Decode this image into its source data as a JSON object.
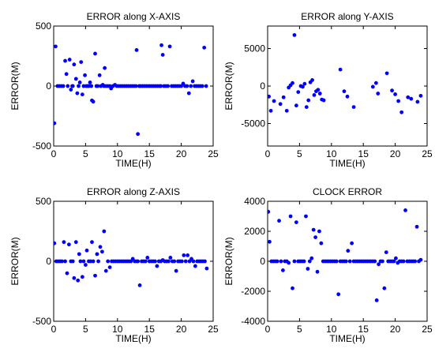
{
  "chart_data": [
    {
      "type": "scatter",
      "title": "ERROR along X-AXIS",
      "xlabel": "TIME(H)",
      "ylabel": "ERROR(M)",
      "xlim": [
        0,
        25
      ],
      "ylim": [
        -500,
        500
      ],
      "xticks": [
        0,
        5,
        10,
        15,
        20,
        25
      ],
      "yticks": [
        -500,
        0,
        500
      ],
      "marker_color": "#0000ff",
      "series": [
        {
          "x": [
            0.1,
            0.3,
            0.6,
            0.9,
            1.2,
            1.5,
            1.8,
            2.0,
            2.2,
            2.5,
            2.7,
            2.9,
            3.0,
            3.2,
            3.5,
            3.7,
            3.9,
            4.1,
            4.3,
            4.5,
            4.7,
            4.9,
            5.1,
            5.3,
            5.5,
            5.7,
            5.9,
            6.0,
            6.2,
            6.5,
            6.7,
            6.9,
            7.2,
            7.4,
            7.7,
            7.9,
            8.0,
            8.2,
            8.5,
            8.8,
            9.0,
            9.3,
            9.6,
            9.9,
            10.2,
            10.5,
            10.8,
            11.1,
            11.4,
            11.7,
            12.0,
            12.3,
            12.6,
            12.9,
            13.0,
            13.2,
            13.4,
            13.6,
            13.9,
            14.2,
            14.5,
            14.8,
            15.1,
            15.4,
            15.7,
            16.0,
            16.3,
            16.6,
            16.8,
            16.9,
            17.1,
            17.3,
            17.6,
            17.9,
            18.2,
            18.5,
            18.8,
            19.1,
            19.4,
            19.7,
            20.0,
            20.3,
            20.6,
            20.9,
            21.2,
            21.5,
            21.8,
            22.1,
            22.4,
            22.7,
            23.0,
            23.3,
            23.6,
            23.9
          ],
          "y": [
            -310,
            330,
            0,
            0,
            0,
            0,
            210,
            100,
            0,
            220,
            -30,
            0,
            0,
            180,
            60,
            -60,
            0,
            30,
            200,
            -70,
            0,
            90,
            0,
            0,
            0,
            30,
            0,
            -120,
            -130,
            270,
            0,
            0,
            90,
            0,
            10,
            0,
            150,
            0,
            0,
            0,
            -20,
            0,
            10,
            0,
            0,
            0,
            0,
            0,
            0,
            0,
            0,
            0,
            0,
            0,
            300,
            -400,
            0,
            0,
            0,
            0,
            0,
            0,
            0,
            0,
            0,
            0,
            0,
            0,
            0,
            340,
            260,
            0,
            0,
            0,
            330,
            0,
            0,
            0,
            0,
            0,
            0,
            20,
            0,
            0,
            -60,
            0,
            40,
            0,
            0,
            0,
            0,
            0,
            320,
            0
          ]
        }
      ]
    },
    {
      "type": "scatter",
      "title": "ERROR along Y-AXIS",
      "xlabel": "TIME(H)",
      "ylabel": "ERROR(M)",
      "xlim": [
        0,
        25
      ],
      "ylim": [
        -8000,
        8000
      ],
      "xticks": [
        0,
        5,
        10,
        15,
        20,
        25
      ],
      "yticks": [
        -5000,
        0,
        5000
      ],
      "marker_color": "#0000ff",
      "series": [
        {
          "x": [
            0.2,
            0.5,
            1.0,
            2.0,
            2.5,
            3.0,
            3.3,
            3.6,
            3.9,
            4.2,
            4.5,
            4.8,
            5.2,
            5.5,
            5.8,
            6.1,
            6.4,
            6.7,
            7.0,
            7.3,
            7.6,
            7.9,
            8.2,
            8.5,
            8.8,
            11.4,
            12.0,
            12.5,
            13.5,
            16.5,
            17.0,
            17.3,
            18.7,
            19.5,
            20.0,
            20.5,
            21.0,
            22.0,
            22.5,
            23.5,
            24.0
          ],
          "y": [
            -1400,
            -3300,
            -2000,
            -2400,
            -1500,
            -3300,
            -200,
            100,
            400,
            6800,
            -2600,
            -800,
            0,
            -100,
            300,
            -2800,
            -1900,
            500,
            800,
            -1200,
            -700,
            -500,
            -1000,
            -1800,
            -1900,
            2200,
            -700,
            -1400,
            -2800,
            -100,
            400,
            -1000,
            1700,
            -600,
            -1100,
            -2000,
            -3500,
            -1500,
            -1700,
            -2100,
            -1300
          ]
        }
      ]
    },
    {
      "type": "scatter",
      "title": "ERROR along Z-AXIS",
      "xlabel": "TIME(H)",
      "ylabel": "ERROR(M)",
      "xlim": [
        0,
        25
      ],
      "ylim": [
        -500,
        500
      ],
      "xticks": [
        0,
        5,
        10,
        15,
        20,
        25
      ],
      "yticks": [
        -500,
        0,
        500
      ],
      "marker_color": "#0000ff",
      "series": [
        {
          "x": [
            0.1,
            0.4,
            0.7,
            1.0,
            1.3,
            1.6,
            1.8,
            2.1,
            2.4,
            2.7,
            3.0,
            3.2,
            3.5,
            3.8,
            4.0,
            4.2,
            4.5,
            4.7,
            5.0,
            5.2,
            5.5,
            5.8,
            6.0,
            6.2,
            6.5,
            6.8,
            7.0,
            7.3,
            7.6,
            7.9,
            8.2,
            8.5,
            8.8,
            9.1,
            9.4,
            9.7,
            10.0,
            10.3,
            10.6,
            10.9,
            11.2,
            11.5,
            11.8,
            12.1,
            12.4,
            12.7,
            13.0,
            13.2,
            13.5,
            13.8,
            14.1,
            14.4,
            14.7,
            15.0,
            15.3,
            15.6,
            15.9,
            16.2,
            16.5,
            16.8,
            17.1,
            17.4,
            17.7,
            18.0,
            18.3,
            18.6,
            18.9,
            19.2,
            19.5,
            19.8,
            20.1,
            20.4,
            20.7,
            21.0,
            21.3,
            21.6,
            21.9,
            22.2,
            22.5,
            22.8,
            23.1,
            23.4,
            23.7,
            24.0
          ],
          "y": [
            150,
            0,
            0,
            0,
            0,
            160,
            0,
            -100,
            140,
            0,
            0,
            -140,
            160,
            -160,
            60,
            0,
            -130,
            0,
            -30,
            90,
            0,
            0,
            160,
            0,
            -120,
            60,
            0,
            120,
            80,
            250,
            -80,
            0,
            -50,
            0,
            0,
            0,
            0,
            0,
            0,
            0,
            0,
            0,
            0,
            0,
            20,
            0,
            0,
            0,
            -200,
            0,
            0,
            0,
            30,
            0,
            0,
            0,
            0,
            -40,
            0,
            0,
            10,
            0,
            0,
            0,
            30,
            0,
            0,
            -80,
            0,
            0,
            0,
            50,
            0,
            50,
            0,
            20,
            0,
            -40,
            0,
            0,
            0,
            0,
            0,
            -60
          ]
        }
      ]
    },
    {
      "type": "scatter",
      "title": "CLOCK ERROR",
      "xlabel": "TIME(H)",
      "ylabel": "ERROR(M)",
      "xlim": [
        0,
        25
      ],
      "ylim": [
        -4000,
        4000
      ],
      "xticks": [
        0,
        5,
        10,
        15,
        20,
        25
      ],
      "yticks": [
        -4000,
        -2000,
        0,
        2000,
        4000
      ],
      "marker_color": "#0000ff",
      "series": [
        {
          "x": [
            0.1,
            0.3,
            0.6,
            0.9,
            1.2,
            1.5,
            1.8,
            2.1,
            2.4,
            2.7,
            3.0,
            3.3,
            3.6,
            3.9,
            4.2,
            4.5,
            4.8,
            5.1,
            5.4,
            5.7,
            6.0,
            6.3,
            6.6,
            6.9,
            7.2,
            7.5,
            7.8,
            8.1,
            8.4,
            8.7,
            9.0,
            9.3,
            9.6,
            9.9,
            10.2,
            10.5,
            10.8,
            11.1,
            11.4,
            11.7,
            12.0,
            12.3,
            12.6,
            12.9,
            13.2,
            13.5,
            13.8,
            14.1,
            14.4,
            14.7,
            15.0,
            15.3,
            15.6,
            15.9,
            16.2,
            16.5,
            16.8,
            17.1,
            17.4,
            17.7,
            18.0,
            18.3,
            18.6,
            18.9,
            19.2,
            19.5,
            19.8,
            20.1,
            20.4,
            20.7,
            21.0,
            21.3,
            21.6,
            21.9,
            22.2,
            22.5,
            22.8,
            23.1,
            23.4,
            23.7,
            24.0
          ],
          "y": [
            3300,
            1300,
            0,
            0,
            0,
            0,
            2700,
            0,
            -600,
            0,
            0,
            -100,
            3000,
            -1800,
            0,
            2600,
            0,
            0,
            0,
            0,
            3000,
            -500,
            0,
            200,
            2100,
            1600,
            -700,
            2000,
            1200,
            0,
            0,
            0,
            0,
            0,
            0,
            0,
            0,
            -2200,
            0,
            0,
            0,
            0,
            700,
            0,
            1200,
            0,
            0,
            0,
            0,
            0,
            0,
            0,
            0,
            0,
            0,
            0,
            0,
            -2600,
            -200,
            0,
            0,
            -1800,
            600,
            0,
            0,
            0,
            0,
            200,
            -100,
            0,
            0,
            0,
            3400,
            0,
            0,
            0,
            0,
            0,
            2300,
            0,
            100
          ]
        }
      ]
    }
  ]
}
